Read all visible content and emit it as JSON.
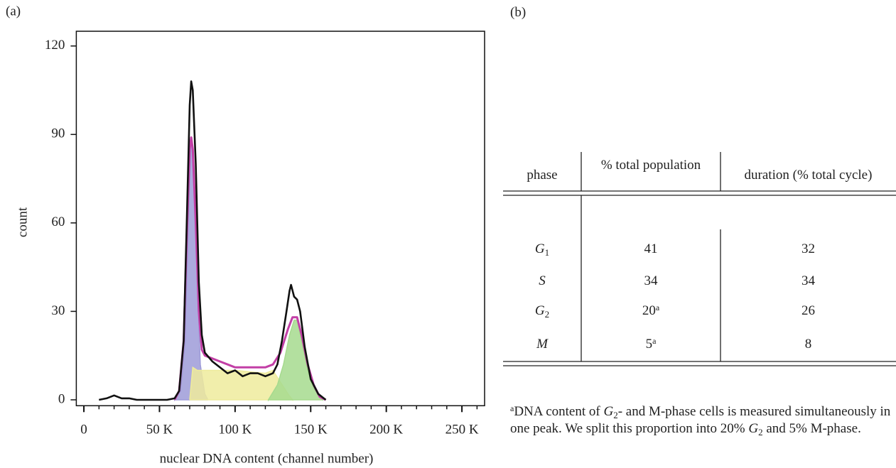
{
  "panel_a_label": "(a)",
  "chart_data": {
    "type": "line",
    "ylabel": "count",
    "xlabel": "nuclear DNA content (channel number)",
    "xlim": [
      -5000,
      265000
    ],
    "ylim": [
      -2,
      125
    ],
    "xticks": [
      0,
      {
        "value": 50000,
        "label": "50 K"
      },
      {
        "value": 100000,
        "label": "100 K"
      },
      {
        "value": 150000,
        "label": "150 K"
      },
      {
        "value": 200000,
        "label": "200 K"
      },
      {
        "value": 250000,
        "label": "250 K"
      }
    ],
    "xminorticks": [
      10000,
      20000,
      30000,
      40000,
      60000,
      70000,
      80000,
      90000,
      110000,
      120000,
      130000,
      140000,
      160000,
      170000,
      180000,
      190000,
      210000,
      220000,
      230000,
      240000,
      260000
    ],
    "yticks": [
      0,
      30,
      60,
      90,
      120
    ],
    "series": [
      {
        "color": "#9e9bd8",
        "fill": true,
        "x": [
          60000,
          64000,
          67000,
          69000,
          71000,
          73000,
          75000,
          77000,
          80000,
          82000
        ],
        "values": [
          0,
          3,
          20,
          60,
          89,
          75,
          40,
          12,
          2,
          0
        ]
      },
      {
        "color": "#eeeb9c",
        "fill": true,
        "x": [
          70000,
          72000,
          75000,
          80000,
          100000,
          120000,
          125000,
          130000,
          135000,
          138000
        ],
        "values": [
          0,
          11,
          10,
          10,
          10,
          9,
          10,
          6,
          2,
          0
        ]
      },
      {
        "color": "#a6da8e",
        "fill": true,
        "x": [
          122000,
          128000,
          132000,
          136000,
          139000,
          141000,
          144000,
          148000,
          152000,
          156000,
          158000
        ],
        "values": [
          0,
          5,
          12,
          22,
          27,
          27,
          20,
          10,
          4,
          1,
          0
        ]
      },
      {
        "color": "#c23fa6",
        "fill": false,
        "x": [
          60000,
          63000,
          66000,
          68000,
          70000,
          71000,
          72000,
          74000,
          76000,
          78000,
          80000,
          90000,
          100000,
          110000,
          120000,
          125000,
          130000,
          135000,
          138000,
          141000,
          144000,
          148000,
          152000,
          156000,
          160000
        ],
        "values": [
          0,
          3,
          20,
          55,
          85,
          89,
          85,
          60,
          30,
          17,
          15,
          13,
          11,
          11,
          11,
          12,
          16,
          24,
          28,
          28,
          22,
          12,
          5,
          1,
          0
        ]
      },
      {
        "color": "#111111",
        "fill": false,
        "x": [
          10000,
          15000,
          20000,
          25000,
          30000,
          35000,
          55000,
          60000,
          63000,
          66000,
          68000,
          70000,
          71000,
          72000,
          74000,
          76000,
          78000,
          80000,
          85000,
          90000,
          95000,
          100000,
          105000,
          110000,
          115000,
          120000,
          125000,
          128000,
          131000,
          134000,
          136000,
          137000,
          139000,
          141000,
          143000,
          146000,
          150000,
          155000,
          160000
        ],
        "values": [
          0,
          0.5,
          1.5,
          0.5,
          0.5,
          0,
          0,
          0.5,
          3,
          20,
          60,
          100,
          108,
          105,
          80,
          40,
          22,
          16,
          13,
          11,
          9,
          10,
          8,
          9,
          9,
          8,
          9,
          12,
          20,
          30,
          37,
          39,
          35,
          34,
          30,
          18,
          7,
          2,
          0
        ]
      }
    ]
  },
  "panel_b_label": "(b)",
  "table": {
    "header": [
      "phase",
      "% total population",
      "duration (% total cycle)"
    ],
    "rows": [
      [
        {
          "symbol": "G",
          "sub": "1"
        },
        {
          "value": "41"
        },
        "32"
      ],
      [
        {
          "symbol": "S"
        },
        {
          "value": "34"
        },
        "34"
      ],
      [
        {
          "symbol": "G",
          "sub": "2"
        },
        {
          "value": "20",
          "note": "a"
        },
        "26"
      ],
      [
        {
          "symbol": "M"
        },
        {
          "value": "5",
          "note": "a"
        },
        "8"
      ]
    ]
  },
  "footnote": {
    "mark": "a",
    "parts": [
      "DNA content of ",
      "G",
      "2",
      "- and M-phase cells is measured simultaneously in one peak. We split this proportion into 20% ",
      "G",
      "2",
      " and 5% M-phase."
    ]
  }
}
